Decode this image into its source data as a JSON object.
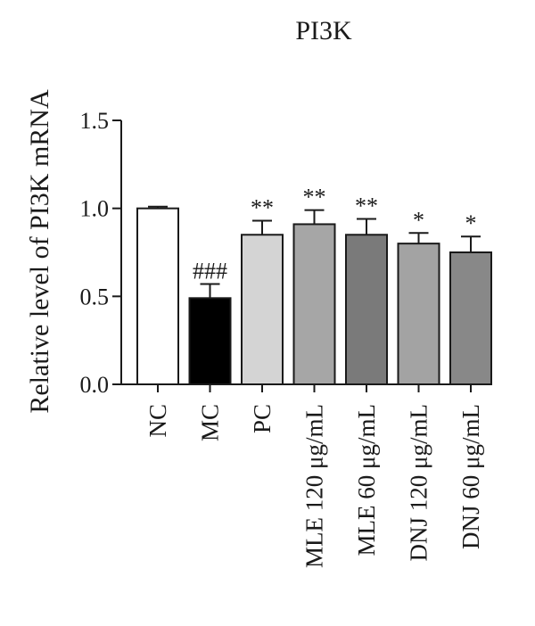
{
  "chart_data": {
    "type": "bar",
    "title": "PI3K",
    "xlabel": "",
    "ylabel": "Relative level of PI3K mRNA",
    "ylim": [
      0,
      1.5
    ],
    "yticks": [
      0.0,
      0.5,
      1.0,
      1.5
    ],
    "ytick_labels": [
      "0.0",
      "0.5",
      "1.0",
      "1.5"
    ],
    "categories": [
      "NC",
      "MC",
      "PC",
      "MLE 120 μg/mL",
      "MLE 60 μg/mL",
      "DNJ 120 μg/mL",
      "DNJ 60 μg/mL"
    ],
    "values": [
      1.0,
      0.49,
      0.85,
      0.91,
      0.85,
      0.8,
      0.75
    ],
    "errors": [
      0.01,
      0.08,
      0.08,
      0.08,
      0.09,
      0.06,
      0.09
    ],
    "annotations": [
      "",
      "###",
      "**",
      "**",
      "**",
      "*",
      "*"
    ],
    "bar_colors": [
      "#ffffff",
      "#000000",
      "#d4d4d4",
      "#a6a6a6",
      "#7a7a7a",
      "#a3a3a3",
      "#888888"
    ],
    "grid": false,
    "legend": "none"
  }
}
